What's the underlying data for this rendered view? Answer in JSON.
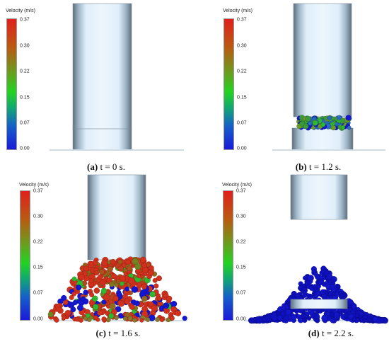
{
  "colorbar": {
    "title": "Velocity (m/s)",
    "ticks": [
      "0.37",
      "0.30",
      "0.22",
      "0.15",
      "0.07",
      "0.00"
    ],
    "gradient_colors": [
      "#e0201c",
      "#b85b12",
      "#6e9a1e",
      "#22d222",
      "#12a872",
      "#1560c8",
      "#1a1ad8"
    ]
  },
  "panels": [
    {
      "label": "(a)",
      "caption": "t = 0 s."
    },
    {
      "label": "(b)",
      "caption": "t = 1.2 s."
    },
    {
      "label": "(c)",
      "caption": "t = 1.6 s."
    },
    {
      "label": "(d)",
      "caption": "t = 2.2 s."
    }
  ],
  "colors": {
    "cylinder_light": "#dfeefa",
    "cylinder_mid": "#9fb6c8",
    "cylinder_dark": "#5f6f7c",
    "particle_red": "#d0301c",
    "particle_blue": "#1416d0",
    "particle_green": "#2fb82f"
  }
}
